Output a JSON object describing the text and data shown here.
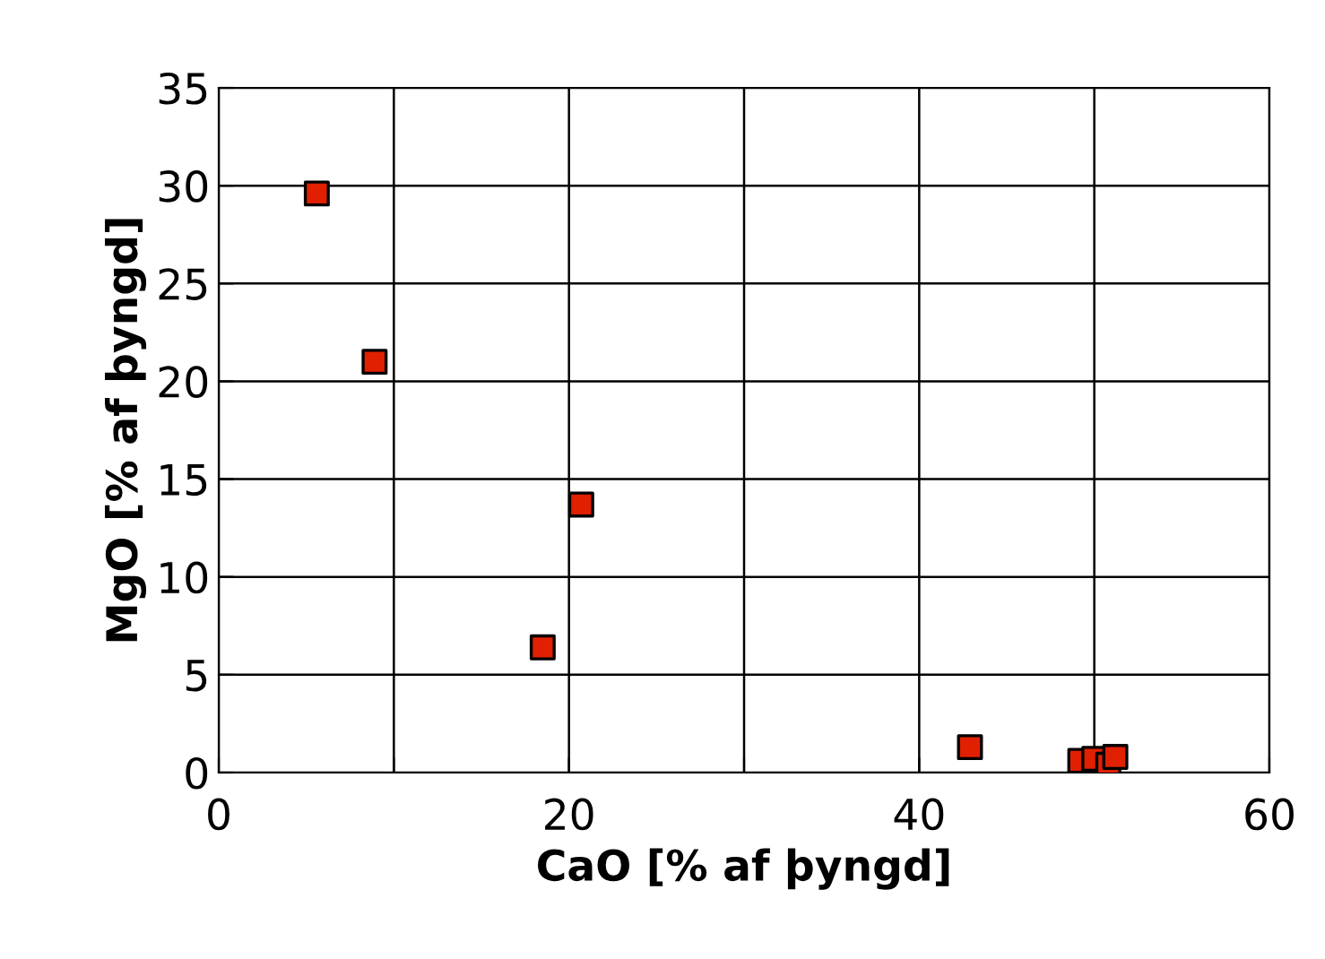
{
  "chart_data": {
    "type": "scatter",
    "xlabel": "CaO [% af þyngd]",
    "ylabel": "MgO [% af þyngd]",
    "x": [
      5.6,
      8.9,
      20.7,
      18.5,
      42.9,
      49.2,
      50.0,
      50.8,
      51.2
    ],
    "series": [
      {
        "color": "#e02000",
        "values": [
          29.6,
          21.0,
          13.7,
          6.4,
          1.3,
          0.6,
          0.7,
          0.4,
          0.8
        ]
      }
    ],
    "marker": "square",
    "grid": true,
    "xlim": [
      0,
      60
    ],
    "xticks": [
      0,
      {
        "value": 10,
        "label": null
      },
      20,
      {
        "value": 30,
        "label": null
      },
      40,
      {
        "value": 50,
        "label": null
      },
      60
    ],
    "ylim": [
      0,
      35
    ],
    "yticks": [
      0,
      5,
      10,
      15,
      20,
      25,
      30,
      35
    ]
  }
}
